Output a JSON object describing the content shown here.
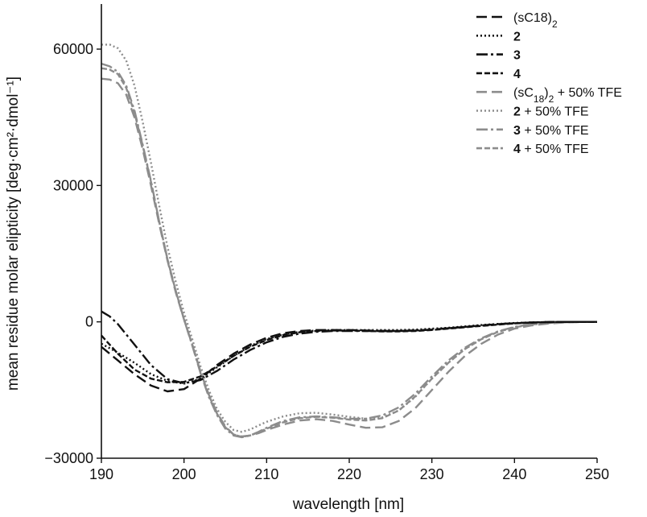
{
  "chart_data": {
    "type": "line",
    "title": "",
    "xlabel": "wavelength [nm]",
    "ylabel": "mean residue molar elipticity [deg·cm²·dmol⁻¹]",
    "xlim": [
      190,
      250
    ],
    "ylim": [
      -30000,
      70000
    ],
    "xticks": [
      190,
      200,
      210,
      220,
      230,
      240,
      250
    ],
    "yticks": [
      -30000,
      0,
      30000,
      60000
    ],
    "xtick_labels": [
      "190",
      "200",
      "210",
      "220",
      "230",
      "240",
      "250"
    ],
    "ytick_labels": [
      "−30000",
      "0",
      "30000",
      "60000"
    ],
    "legend_position": "top-right",
    "series": [
      {
        "name": "(sC18)2",
        "legend_label": "(sC18)",
        "legend_sub": "",
        "legend_suffix": "2",
        "legend_suffix_type": "sub",
        "color": "#111111",
        "dash": "13,6",
        "x": [
          190,
          192,
          194,
          196,
          198,
          200,
          202,
          204,
          206,
          208,
          210,
          212,
          214,
          216,
          218,
          220,
          222,
          224,
          226,
          228,
          230,
          232,
          234,
          236,
          238,
          240,
          242,
          244,
          246,
          248,
          250
        ],
        "y": [
          -5500,
          -8500,
          -11500,
          -14000,
          -15300,
          -14800,
          -12500,
          -9500,
          -7000,
          -5000,
          -3500,
          -2500,
          -2000,
          -1800,
          -1800,
          -1800,
          -1900,
          -2000,
          -2000,
          -1900,
          -1700,
          -1400,
          -1100,
          -800,
          -500,
          -300,
          -150,
          -50,
          0,
          0,
          0
        ]
      },
      {
        "name": "2",
        "legend_label": "2",
        "legend_bold": true,
        "legend_suffix": "",
        "color": "#111111",
        "dash": "2,3",
        "x": [
          190,
          192,
          194,
          196,
          198,
          200,
          202,
          204,
          206,
          208,
          210,
          212,
          214,
          216,
          218,
          220,
          222,
          224,
          226,
          228,
          230,
          232,
          234,
          236,
          238,
          240,
          242,
          244,
          246,
          248,
          250
        ],
        "y": [
          -4800,
          -6800,
          -9000,
          -11500,
          -13000,
          -13600,
          -12500,
          -10000,
          -7500,
          -5300,
          -3800,
          -2800,
          -2200,
          -1900,
          -1800,
          -1800,
          -1800,
          -1800,
          -1800,
          -1700,
          -1500,
          -1300,
          -1000,
          -700,
          -450,
          -250,
          -120,
          -40,
          0,
          0,
          0
        ]
      },
      {
        "name": "3",
        "legend_label": "3",
        "legend_bold": true,
        "legend_suffix": "",
        "color": "#111111",
        "dash": "14,4,3,4",
        "x": [
          190,
          191,
          192,
          194,
          196,
          198,
          200,
          202,
          204,
          206,
          208,
          210,
          212,
          214,
          216,
          218,
          220,
          222,
          224,
          226,
          228,
          230,
          232,
          234,
          236,
          238,
          240,
          242,
          244,
          246,
          248,
          250
        ],
        "y": [
          2300,
          1200,
          -500,
          -5000,
          -9500,
          -12600,
          -13500,
          -12800,
          -10800,
          -8300,
          -6200,
          -4500,
          -3300,
          -2600,
          -2200,
          -2000,
          -2000,
          -2000,
          -2000,
          -2000,
          -1900,
          -1700,
          -1400,
          -1100,
          -800,
          -500,
          -300,
          -150,
          -50,
          0,
          0,
          0
        ]
      },
      {
        "name": "4",
        "legend_label": "4",
        "legend_bold": true,
        "legend_suffix": "",
        "color": "#111111",
        "dash": "7,3",
        "x": [
          190,
          192,
          194,
          196,
          198,
          200,
          202,
          204,
          206,
          208,
          210,
          212,
          214,
          216,
          218,
          220,
          222,
          224,
          226,
          228,
          230,
          232,
          234,
          236,
          238,
          240,
          242,
          244,
          246,
          248,
          250
        ],
        "y": [
          -3000,
          -7000,
          -10500,
          -12500,
          -13300,
          -13200,
          -12000,
          -9800,
          -7500,
          -5500,
          -4000,
          -2900,
          -2300,
          -2000,
          -1900,
          -1900,
          -2000,
          -2100,
          -2100,
          -2000,
          -1800,
          -1500,
          -1200,
          -900,
          -600,
          -350,
          -180,
          -60,
          0,
          0,
          0
        ]
      },
      {
        "name": "(sC18)2 + 50% TFE",
        "legend_label": "(sC",
        "legend_sub": "18",
        "legend_suffix": ")",
        "legend_sub2": "2",
        "legend_tail": " + 50% TFE",
        "color": "#8c8c8c",
        "dash": "13,6",
        "x": [
          190,
          191,
          192,
          193,
          194,
          195,
          196,
          197,
          198,
          199,
          200,
          201,
          202,
          203,
          204,
          205,
          206,
          207,
          208,
          209,
          210,
          212,
          214,
          216,
          218,
          220,
          222,
          224,
          226,
          228,
          230,
          232,
          234,
          236,
          238,
          240,
          242,
          244,
          246,
          248,
          250
        ],
        "y": [
          53500,
          53300,
          52500,
          50000,
          45000,
          38000,
          30000,
          21500,
          13500,
          6500,
          500,
          -5000,
          -11000,
          -16000,
          -20000,
          -23000,
          -24800,
          -25200,
          -25000,
          -24500,
          -23800,
          -22600,
          -21700,
          -21400,
          -21800,
          -22600,
          -23300,
          -23200,
          -21800,
          -19000,
          -15000,
          -11000,
          -7500,
          -4800,
          -2800,
          -1500,
          -800,
          -400,
          -150,
          -50,
          0
        ]
      },
      {
        "name": "2 + 50% TFE",
        "legend_label": "2",
        "legend_bold": true,
        "legend_tail": " + 50% TFE",
        "color": "#8c8c8c",
        "dash": "2,3",
        "x": [
          190,
          191,
          192,
          193,
          194,
          195,
          196,
          197,
          198,
          199,
          200,
          201,
          202,
          203,
          204,
          205,
          206,
          207,
          208,
          209,
          210,
          212,
          214,
          216,
          218,
          220,
          222,
          224,
          226,
          228,
          230,
          232,
          234,
          236,
          238,
          240,
          242,
          244,
          246,
          248,
          250
        ],
        "y": [
          61000,
          61000,
          60200,
          57500,
          52000,
          44000,
          35000,
          25500,
          16500,
          8800,
          2000,
          -3800,
          -9800,
          -15000,
          -19200,
          -22000,
          -23800,
          -24200,
          -23700,
          -22800,
          -22000,
          -20800,
          -20100,
          -20000,
          -20400,
          -20900,
          -21300,
          -21000,
          -19500,
          -16500,
          -12500,
          -9000,
          -6000,
          -3800,
          -2200,
          -1200,
          -600,
          -250,
          -80,
          -20,
          0
        ]
      },
      {
        "name": "3 + 50% TFE",
        "legend_label": "3",
        "legend_bold": true,
        "legend_tail": " + 50% TFE",
        "color": "#8c8c8c",
        "dash": "14,4,3,4",
        "x": [
          190,
          191,
          192,
          193,
          194,
          195,
          196,
          197,
          198,
          199,
          200,
          201,
          202,
          203,
          204,
          205,
          206,
          207,
          208,
          209,
          210,
          212,
          214,
          216,
          218,
          220,
          222,
          224,
          226,
          228,
          230,
          232,
          234,
          236,
          238,
          240,
          242,
          244,
          246,
          248,
          250
        ],
        "y": [
          56800,
          56200,
          55000,
          52000,
          46500,
          39000,
          31000,
          22000,
          13800,
          6800,
          500,
          -5200,
          -11300,
          -16500,
          -20500,
          -23500,
          -25000,
          -25400,
          -25000,
          -24200,
          -23300,
          -21800,
          -21000,
          -20800,
          -21000,
          -21300,
          -21300,
          -20600,
          -18800,
          -15800,
          -12000,
          -8500,
          -5700,
          -3600,
          -2100,
          -1100,
          -550,
          -230,
          -80,
          -20,
          0
        ]
      },
      {
        "name": "4 + 50% TFE",
        "legend_label": "4",
        "legend_bold": true,
        "legend_tail": " + 50% TFE",
        "color": "#8c8c8c",
        "dash": "7,3",
        "x": [
          190,
          191,
          192,
          193,
          194,
          195,
          196,
          197,
          198,
          199,
          200,
          201,
          202,
          203,
          204,
          205,
          206,
          207,
          208,
          209,
          210,
          212,
          214,
          216,
          218,
          220,
          222,
          224,
          226,
          228,
          230,
          232,
          234,
          236,
          238,
          240,
          242,
          244,
          246,
          248,
          250
        ],
        "y": [
          55800,
          55500,
          54500,
          51500,
          46000,
          38800,
          30800,
          22000,
          13800,
          6800,
          600,
          -5000,
          -11000,
          -16200,
          -20200,
          -23200,
          -24800,
          -25300,
          -25000,
          -24300,
          -23500,
          -22100,
          -21200,
          -20900,
          -21100,
          -21500,
          -21700,
          -21200,
          -19500,
          -16400,
          -12500,
          -9000,
          -6000,
          -3800,
          -2200,
          -1200,
          -600,
          -250,
          -80,
          -20,
          0
        ]
      }
    ]
  }
}
